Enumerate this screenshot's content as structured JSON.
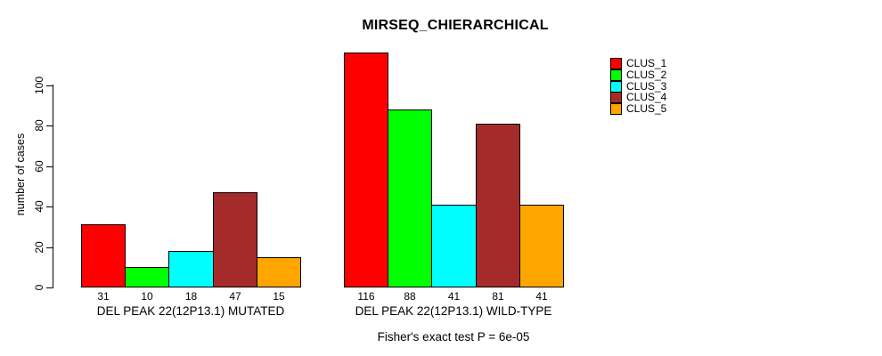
{
  "title": "MIRSEQ_CHIERARCHICAL",
  "footnote": "Fisher's exact test P = 6e-05",
  "chart_data": {
    "type": "bar",
    "title": "MIRSEQ_CHIERARCHICAL",
    "ylabel": "number of cases",
    "xlabel": "",
    "ylim": [
      0,
      120
    ],
    "yticks": [
      0,
      20,
      40,
      60,
      80,
      100
    ],
    "grid": false,
    "legend_position": "top-right",
    "bar_border_color": "#000000",
    "value_labels_under_bars": true,
    "categories": [
      "DEL PEAK 22(12P13.1) MUTATED",
      "DEL PEAK 22(12P13.1) WILD-TYPE"
    ],
    "series": [
      {
        "name": "CLUS_1",
        "color": "#FF0000",
        "values": [
          31,
          116
        ]
      },
      {
        "name": "CLUS_2",
        "color": "#00FF00",
        "values": [
          10,
          88
        ]
      },
      {
        "name": "CLUS_3",
        "color": "#00FFFF",
        "values": [
          18,
          41
        ]
      },
      {
        "name": "CLUS_4",
        "color": "#A52A2A",
        "values": [
          47,
          81
        ]
      },
      {
        "name": "CLUS_5",
        "color": "#FFA500",
        "values": [
          15,
          41
        ]
      }
    ]
  }
}
